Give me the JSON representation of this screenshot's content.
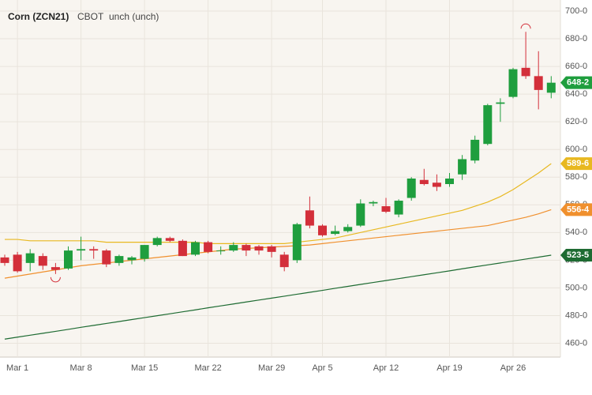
{
  "chart_data": {
    "type": "candlestick",
    "title": "Corn (ZCN21)",
    "exchange": "CBOT",
    "change": "unch (unch)",
    "categories": [
      null,
      "Mar 1",
      null,
      null,
      null,
      null,
      "Mar 8",
      null,
      null,
      null,
      null,
      "Mar 15",
      null,
      null,
      null,
      null,
      "Mar 22",
      null,
      null,
      null,
      null,
      "Mar 29",
      null,
      null,
      null,
      "Apr 5",
      null,
      null,
      null,
      null,
      "Apr 12",
      null,
      null,
      null,
      null,
      "Apr 19",
      null,
      null,
      null,
      null,
      "Apr 26",
      null,
      null,
      null
    ],
    "open": [
      522,
      524,
      518,
      523,
      515,
      514,
      527,
      528,
      527,
      518,
      520,
      521,
      531,
      536,
      534,
      524,
      533,
      527,
      527,
      531,
      530,
      530,
      524,
      520,
      556,
      545,
      539,
      541,
      545,
      561,
      559,
      553,
      565,
      578,
      576,
      575,
      582,
      592,
      604,
      633,
      638,
      659,
      653,
      641
    ],
    "high": [
      524,
      526,
      528,
      525,
      518,
      530,
      537,
      530,
      528,
      524,
      523,
      531,
      537,
      537,
      535,
      534,
      534,
      530,
      533,
      532,
      531,
      531,
      526,
      547,
      566,
      546,
      545,
      546,
      564,
      563,
      565,
      564,
      580,
      586,
      582,
      583,
      596,
      610,
      633,
      637,
      659,
      685,
      671,
      653
    ],
    "low": [
      516,
      511,
      512,
      513,
      510,
      513,
      520,
      521,
      515,
      516,
      517,
      519,
      530,
      533,
      523,
      523,
      525,
      524,
      526,
      523,
      524,
      522,
      512,
      518,
      543,
      537,
      538,
      540,
      544,
      559,
      554,
      551,
      563,
      574,
      570,
      573,
      578,
      590,
      603,
      620,
      637,
      651,
      629,
      637
    ],
    "close": [
      518,
      512,
      525,
      516,
      513,
      527,
      528,
      527,
      517,
      523,
      522,
      531,
      536,
      534,
      523,
      533,
      526,
      527,
      531,
      527,
      527,
      526,
      515,
      546,
      545,
      538,
      541,
      544,
      561,
      562,
      555,
      563,
      579,
      575,
      573,
      579,
      593,
      607,
      632,
      634,
      658,
      653,
      643,
      648.25
    ],
    "up_color": "#1f9e3e",
    "down_color": "#d32f3a",
    "tag": {
      "value": 648.25,
      "label": "648-2",
      "color": "#1f9e3e"
    },
    "lines": [
      {
        "color": "#e8b820",
        "values": [
          535,
          535,
          534,
          534,
          534,
          534,
          534,
          534,
          533,
          533,
          533,
          533,
          533,
          533,
          533,
          533,
          532,
          532,
          532,
          532,
          532,
          532,
          532,
          533,
          534,
          535,
          536,
          538,
          540,
          542,
          544,
          546,
          548,
          550,
          552,
          554,
          556,
          559,
          562,
          566,
          571,
          577,
          583,
          589.75
        ],
        "tag": {
          "value": 589.75,
          "label": "589-6"
        }
      },
      {
        "color": "#f0902e",
        "values": [
          507,
          508.5,
          510,
          511.5,
          513,
          514.5,
          516,
          517,
          518,
          519,
          520,
          521,
          522,
          523,
          524,
          525,
          526,
          527,
          528,
          528.5,
          529,
          529.5,
          530,
          530.5,
          531,
          532,
          533,
          534,
          535,
          536,
          537,
          538,
          539,
          540,
          541,
          542,
          543,
          544,
          545,
          547,
          549,
          551,
          553.5,
          556.5
        ],
        "tag": {
          "value": 556.5,
          "label": "556-4"
        }
      },
      {
        "color": "#1e6b32",
        "values": [
          463,
          464.4,
          465.8,
          467.2,
          468.6,
          470,
          471.5,
          472.9,
          474.3,
          475.7,
          477.1,
          478.5,
          479.9,
          481.3,
          482.7,
          484.1,
          485.6,
          487,
          488.4,
          489.8,
          491.2,
          492.6,
          494,
          495.4,
          496.8,
          498.2,
          499.7,
          501.1,
          502.5,
          503.9,
          505.3,
          506.7,
          508.1,
          509.5,
          510.9,
          512.3,
          513.8,
          515.2,
          516.6,
          518,
          519.4,
          520.8,
          522.2,
          523.625
        ],
        "tag": {
          "value": 523.625,
          "label": "523-5"
        }
      }
    ],
    "ylim": [
      450,
      708
    ],
    "yticks": [
      {
        "value": 460,
        "label": "460-0"
      },
      {
        "value": 480,
        "label": "480-0"
      },
      {
        "value": 500,
        "label": "500-0"
      },
      {
        "value": 520,
        "label": "520-0"
      },
      {
        "value": 540,
        "label": "540-0"
      },
      {
        "value": 560,
        "label": "560-0"
      },
      {
        "value": 580,
        "label": "580-0"
      },
      {
        "value": 600,
        "label": "600-0"
      },
      {
        "value": 620,
        "label": "620-0"
      },
      {
        "value": 640,
        "label": "640-0"
      },
      {
        "value": 660,
        "label": "660-0"
      },
      {
        "value": 680,
        "label": "680-0"
      },
      {
        "value": 700,
        "label": "700-0"
      }
    ],
    "grid": true
  }
}
